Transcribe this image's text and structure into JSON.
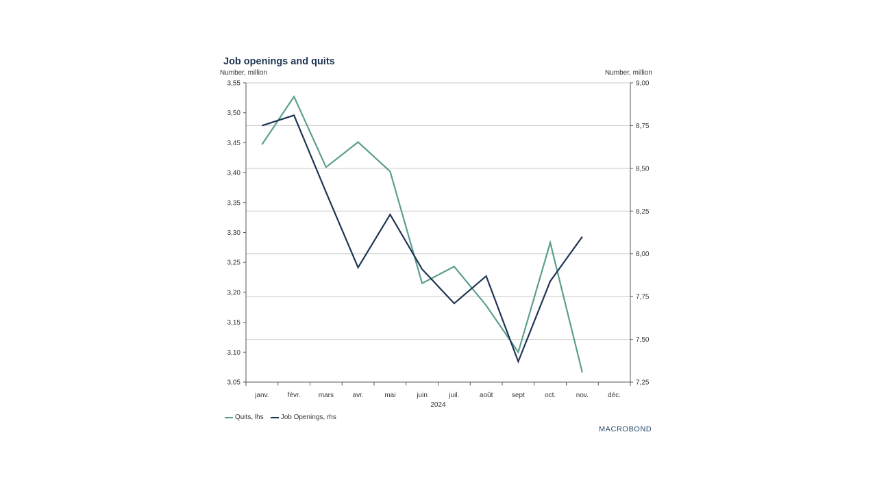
{
  "title": "Job openings and quits",
  "unit_left": "Number, million",
  "unit_right": "Number, million",
  "brand": "MACROBOND",
  "colors": {
    "quits": "#5a9e8c",
    "openings": "#1e3553",
    "grid": "#c8c8c8",
    "axis": "#555555"
  },
  "chart_data": {
    "type": "line",
    "title": "Job openings and quits",
    "categories": [
      "janv.",
      "févr.",
      "mars",
      "avr.",
      "mai",
      "juin",
      "juil.",
      "août",
      "sept",
      "oct.",
      "nov.",
      "déc."
    ],
    "xlabel": "2024",
    "left_axis": {
      "label": "Number, million",
      "ylim": [
        3.05,
        3.55
      ],
      "ticks": [
        "3,55",
        "3,50",
        "3,45",
        "3,40",
        "3,35",
        "3,30",
        "3,25",
        "3,20",
        "3,15",
        "3,10",
        "3,05"
      ],
      "tick_values": [
        3.55,
        3.5,
        3.45,
        3.4,
        3.35,
        3.3,
        3.25,
        3.2,
        3.15,
        3.1,
        3.05
      ]
    },
    "right_axis": {
      "label": "Number, million",
      "ylim": [
        7.25,
        9.0
      ],
      "ticks": [
        "9,00",
        "8,75",
        "8,50",
        "8,25",
        "8,00",
        "7,75",
        "7,50",
        "7,25"
      ],
      "tick_values": [
        9.0,
        8.75,
        8.5,
        8.25,
        8.0,
        7.75,
        7.5,
        7.25
      ]
    },
    "series": [
      {
        "name": "Quits, lhs",
        "axis": "left",
        "values": [
          3.447,
          3.527,
          3.409,
          3.451,
          3.402,
          3.215,
          3.243,
          3.178,
          3.1,
          3.283,
          3.066,
          null
        ]
      },
      {
        "name": "Job Openings, rhs",
        "axis": "right",
        "values": [
          8.75,
          8.81,
          8.36,
          7.92,
          8.23,
          7.91,
          7.71,
          7.87,
          7.37,
          7.84,
          8.1,
          null
        ]
      }
    ]
  }
}
